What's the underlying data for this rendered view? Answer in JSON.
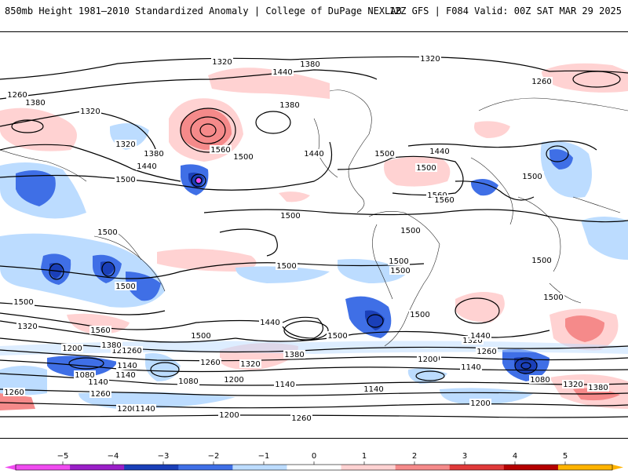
{
  "header": {
    "title": "850mb Height 1981–2010 Standardized Anomaly | College of DuPage NEXLAB",
    "run": "12Z GFS | F084 Valid: 00Z SAT MAR 29 2025"
  },
  "contour_labels": [
    "1320",
    "1380",
    "1440",
    "1320",
    "1260",
    "1380",
    "1320",
    "1320",
    "1380",
    "1440",
    "1500",
    "1440",
    "1560",
    "1500",
    "1500",
    "1380",
    "1440",
    "1500",
    "1560",
    "1560",
    "1500",
    "1500",
    "1500",
    "1500",
    "1500",
    "1500",
    "1500",
    "1500",
    "1500",
    "1500",
    "1500",
    "1500",
    "1440",
    "1320",
    "1560",
    "1500",
    "1440",
    "1500",
    "1200",
    "1260",
    "1380",
    "1380",
    "1320",
    "1260",
    "1200",
    "1140",
    "1140",
    "1200",
    "1140",
    "1080",
    "1080",
    "1260",
    "1200",
    "1200",
    "1140",
    "1260",
    "1140",
    "1200",
    "1140",
    "1080",
    "1380",
    "1320",
    "1260",
    "1200",
    "1320",
    "1440",
    "1500",
    "1260",
    "1200",
    "1140",
    "1260"
  ],
  "colorbar": {
    "ticks": [
      "−5",
      "−4",
      "−3",
      "−2",
      "−1",
      "0",
      "1",
      "2",
      "3",
      "4",
      "5"
    ],
    "colors": [
      "#f04bf0",
      "#9a1fc8",
      "#1a3fb8",
      "#3f6fe6",
      "#bcdcff",
      "#ffffff",
      "#ffd2d2",
      "#f58a8a",
      "#e03a3a",
      "#b40000",
      "#ffb300"
    ]
  }
}
